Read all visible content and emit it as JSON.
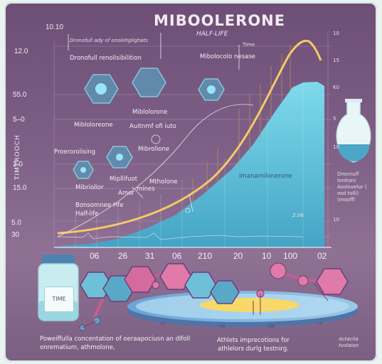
{
  "title": "MIBOOLERONE",
  "subtitle": "HALF-LIFE",
  "top_left_number": "10.10",
  "top_note": "Dronofull ady of onolohglighats",
  "y_axis_left": [
    "12.0",
    "55.0",
    "5–0",
    "2.0",
    "15.0",
    "5.0",
    "30"
  ],
  "y_axis_right": [
    "10",
    "15",
    "K0",
    "5",
    "10",
    "10"
  ],
  "y_axis_title": "TIMTROOCH",
  "x_axis": [
    "06",
    "26",
    "31",
    "06",
    "210",
    "20",
    "10",
    "100",
    "02"
  ],
  "labels": {
    "dronofull": "Dronofull renolisibilition",
    "mibolocone_release": "Mibolocolo nesase",
    "time_tag": "Time",
    "mibolerone1": "Miblolorone",
    "mibolerone2": "Mibloloreone",
    "autumn": "Auitnmf ofi iuto",
    "mibrolione": "Mibrolione",
    "proerorolising": "Proerorolising",
    "mibrolior": "Mibriolior",
    "mipllifuot": "Mipllifuot",
    "amor": "Amor",
    "mines": "mines",
    "metholone": "Mtholone",
    "bonsomnee": "Bonsomnee Hfe",
    "half_life": "Half-life",
    "chart_inner": "Imanamilonerone",
    "peak_tag": "2.08",
    "right_note": "Dronnuff Ionitoni Asolovelur ( osd tolli) (mooffl",
    "vial": "TIME",
    "bottom_left": "Poweiffulla concentation of oeraapociusn an dlfoll onrematium, athmolone,",
    "bottom_center": "Athlets imprecotions for athlelors durlg testnirg.",
    "bottom_right": "Actaclia tvolaion"
  },
  "colors": {
    "background": "#7e5f86",
    "area_fill": "#6fd0e6",
    "curve": "#f5c968",
    "molecule_pink": "#d46b9e",
    "molecule_blue": "#5aa8c8"
  }
}
